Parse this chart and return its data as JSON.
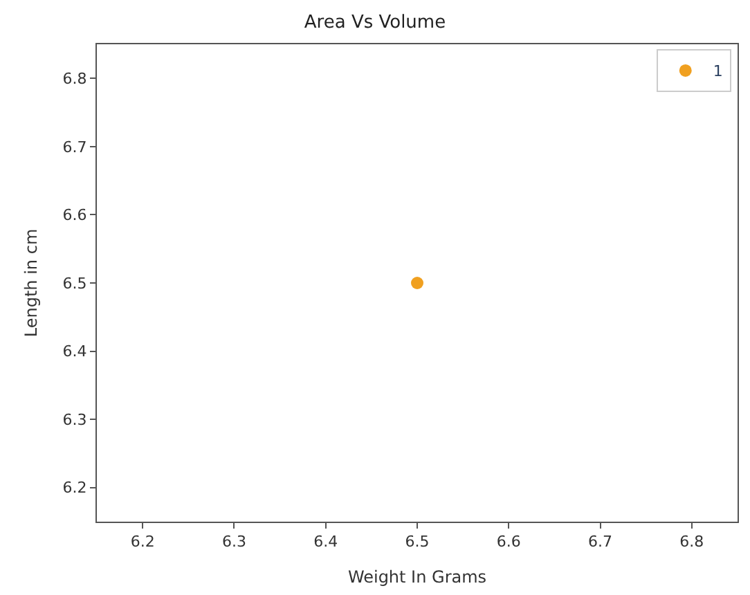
{
  "chart_data": {
    "type": "scatter",
    "title": "Area Vs Volume",
    "xlabel": "Weight In Grams",
    "ylabel": "Length in cm",
    "x": [
      6.5
    ],
    "series": [
      {
        "name": "1",
        "color": "#f0a020",
        "values": [
          6.5
        ]
      }
    ],
    "xlim": [
      6.15,
      6.85
    ],
    "ylim": [
      6.15,
      6.85
    ],
    "xticks": [
      6.2,
      6.3,
      6.4,
      6.5,
      6.6,
      6.7,
      6.8
    ],
    "yticks": [
      6.2,
      6.3,
      6.4,
      6.5,
      6.6,
      6.7,
      6.8
    ],
    "legend": "top right",
    "marker": "circle"
  }
}
